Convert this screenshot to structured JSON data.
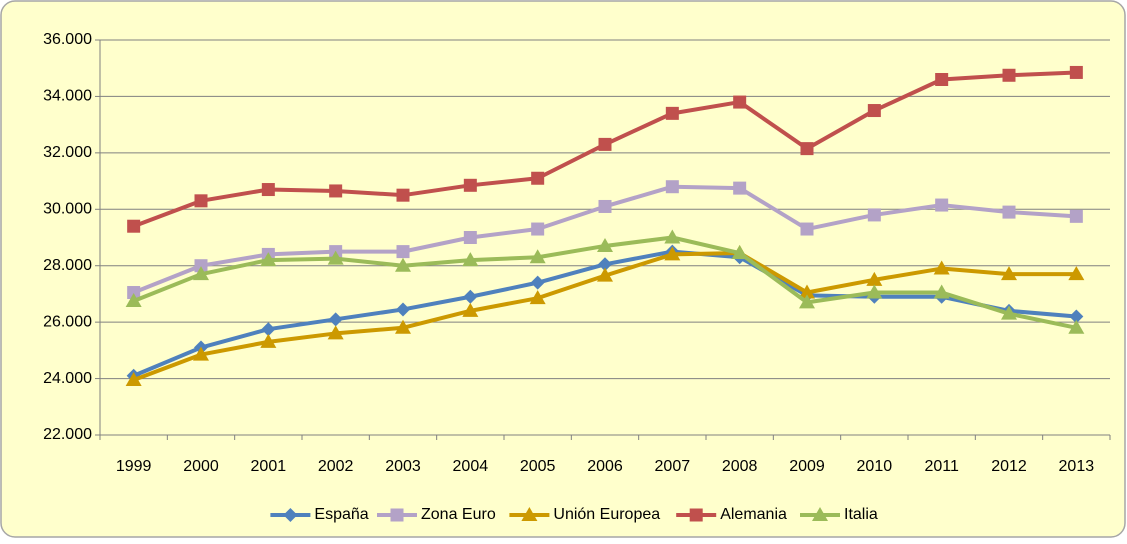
{
  "chart_data": {
    "type": "line",
    "categories": [
      "1999",
      "2000",
      "2001",
      "2002",
      "2003",
      "2004",
      "2005",
      "2006",
      "2007",
      "2008",
      "2009",
      "2010",
      "2011",
      "2012",
      "2013"
    ],
    "series": [
      {
        "name": "España",
        "color": "#4f81bd",
        "marker": "diamond",
        "values": [
          24100,
          25100,
          25750,
          26100,
          26450,
          26900,
          27400,
          28050,
          28500,
          28300,
          26950,
          26900,
          26900,
          26400,
          26200
        ]
      },
      {
        "name": "Zona Euro",
        "color": "#b3a2c7",
        "marker": "square",
        "values": [
          27050,
          28000,
          28400,
          28500,
          28500,
          29000,
          29300,
          30100,
          30800,
          30750,
          29300,
          29800,
          30150,
          29900,
          29750
        ]
      },
      {
        "name": "Unión Europea",
        "color": "#cc9900",
        "marker": "triangle",
        "values": [
          23950,
          24850,
          25300,
          25600,
          25800,
          26400,
          26850,
          27650,
          28400,
          28450,
          27050,
          27500,
          27900,
          27700,
          27700
        ]
      },
      {
        "name": "Alemania",
        "color": "#c0504d",
        "marker": "square",
        "values": [
          29400,
          30300,
          30700,
          30650,
          30500,
          30850,
          31100,
          32300,
          33400,
          33800,
          32150,
          33500,
          34600,
          34750,
          34850
        ]
      },
      {
        "name": "Italia",
        "color": "#9bbb59",
        "marker": "triangle",
        "values": [
          26750,
          27700,
          28200,
          28250,
          28000,
          28200,
          28300,
          28700,
          29000,
          28450,
          26700,
          27050,
          27050,
          26300,
          25800
        ]
      }
    ],
    "ylim": [
      22000,
      36000
    ],
    "yticks": [
      {
        "value": 22000,
        "label": "22.000"
      },
      {
        "value": 24000,
        "label": "24.000"
      },
      {
        "value": 26000,
        "label": "26.000"
      },
      {
        "value": 28000,
        "label": "28.000"
      },
      {
        "value": 30000,
        "label": "30.000"
      },
      {
        "value": 32000,
        "label": "32.000"
      },
      {
        "value": 34000,
        "label": "34.000"
      },
      {
        "value": 36000,
        "label": "36.000"
      }
    ],
    "grid": true,
    "legend": "bottom"
  }
}
